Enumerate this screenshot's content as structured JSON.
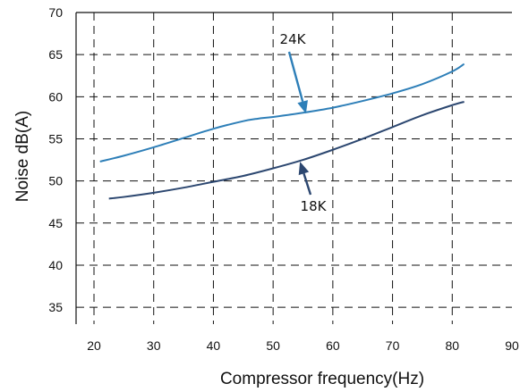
{
  "chart_data": {
    "type": "line",
    "xlabel": "Compressor frequency(Hz)",
    "ylabel": "Noise dB(A)",
    "xlim": [
      17,
      90
    ],
    "ylim": [
      33,
      70
    ],
    "x_ticks": [
      20,
      30,
      40,
      50,
      60,
      70,
      80,
      90
    ],
    "y_ticks": [
      35,
      40,
      45,
      50,
      55,
      60,
      65,
      70
    ],
    "grid": true,
    "grid_style": "dashed",
    "series": [
      {
        "name": "24K",
        "color": "#2e7fb8",
        "x": [
          21,
          25,
          30,
          35,
          40,
          45,
          47.5,
          50,
          55,
          60,
          65,
          70,
          75,
          80,
          82
        ],
        "y": [
          52.3,
          53.0,
          54.0,
          55.1,
          56.2,
          57.1,
          57.4,
          57.6,
          58.1,
          58.7,
          59.5,
          60.4,
          61.5,
          63.0,
          63.9
        ]
      },
      {
        "name": "18K",
        "color": "#2c4770",
        "x": [
          22.5,
          25,
          30,
          35,
          40,
          45,
          50,
          55,
          60,
          65,
          70,
          75,
          80,
          82
        ],
        "y": [
          47.9,
          48.1,
          48.6,
          49.2,
          49.9,
          50.6,
          51.5,
          52.5,
          53.7,
          55.0,
          56.4,
          57.8,
          59.0,
          59.4
        ]
      }
    ],
    "annotations": [
      {
        "text": "24K",
        "series": 0,
        "arrow_to": [
          55.5,
          58.0
        ]
      },
      {
        "text": "18K",
        "series": 1,
        "arrow_to": [
          54.5,
          52.3
        ]
      }
    ]
  }
}
